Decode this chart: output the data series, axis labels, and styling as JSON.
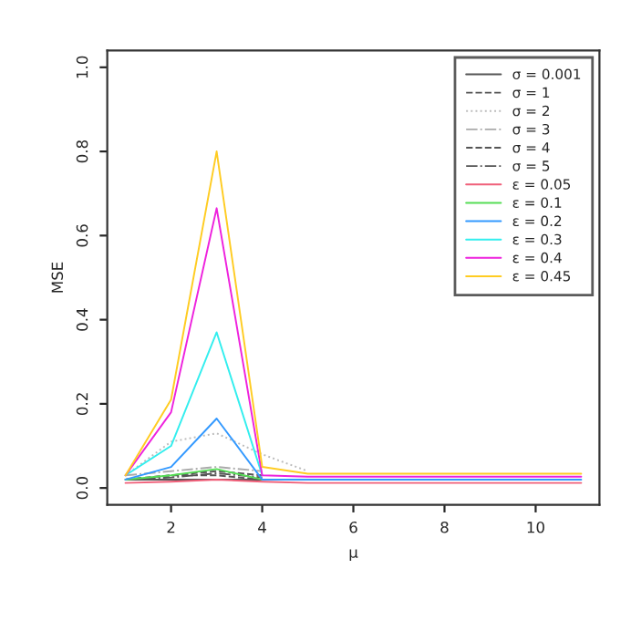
{
  "chart_data": {
    "type": "line",
    "xlabel": "μ",
    "ylabel": "MSE",
    "x": [
      1,
      2,
      3,
      4,
      5,
      6,
      7,
      8,
      9,
      10,
      11
    ],
    "xlim": [
      0.6,
      11.4
    ],
    "ylim": [
      -0.04,
      1.04
    ],
    "xticks": [
      2,
      4,
      6,
      8,
      10
    ],
    "yticks": [
      {
        "value": 0,
        "label": "0.0"
      },
      {
        "value": 0.2,
        "label": "0.2"
      },
      {
        "value": 0.4,
        "label": "0.4"
      },
      {
        "value": 0.6,
        "label": "0.6"
      },
      {
        "value": 0.8,
        "label": "0.8"
      },
      {
        "value": 1,
        "label": "1.0"
      }
    ],
    "grid": false,
    "legend": "top right",
    "marker": "none",
    "series": [
      {
        "name": "σ = 0.001",
        "color": "#555555",
        "line_style": "solid",
        "values": [
          0.02,
          0.02,
          0.02,
          0.02,
          null,
          null,
          null,
          null,
          null,
          null,
          null
        ]
      },
      {
        "name": "σ = 1",
        "color": "#555555",
        "line_style": "dashed",
        "values": [
          0.02,
          0.03,
          0.03,
          0.02,
          null,
          null,
          null,
          null,
          null,
          null,
          null
        ]
      },
      {
        "name": "σ = 2",
        "color": "#bbbbbb",
        "line_style": "dotted",
        "values": [
          0.03,
          0.11,
          0.13,
          0.08,
          0.04,
          null,
          null,
          null,
          null,
          null,
          null
        ]
      },
      {
        "name": "σ = 3",
        "color": "#aaaaaa",
        "line_style": "dashdot",
        "values": [
          0.03,
          0.04,
          0.05,
          0.04,
          null,
          null,
          null,
          null,
          null,
          null,
          null
        ]
      },
      {
        "name": "σ = 4",
        "color": "#555555",
        "line_style": "dashed",
        "values": [
          0.02,
          0.03,
          0.04,
          0.03,
          null,
          null,
          null,
          null,
          null,
          null,
          null
        ]
      },
      {
        "name": "σ = 5",
        "color": "#555555",
        "line_style": "dashdot",
        "values": [
          0.02,
          0.025,
          0.035,
          0.025,
          null,
          null,
          null,
          null,
          null,
          null,
          null
        ]
      },
      {
        "name": "ε = 0.05",
        "color": "#f0607a",
        "line_style": "solid",
        "values": [
          0.012,
          0.015,
          0.02,
          0.015,
          0.012,
          0.012,
          0.012,
          0.012,
          0.012,
          0.012,
          0.012
        ]
      },
      {
        "name": "ε = 0.1",
        "color": "#55dd55",
        "line_style": "solid",
        "values": [
          0.02,
          0.03,
          0.045,
          0.02,
          null,
          null,
          null,
          null,
          null,
          null,
          null
        ]
      },
      {
        "name": "ε = 0.2",
        "color": "#3399ff",
        "line_style": "solid",
        "values": [
          0.02,
          0.05,
          0.165,
          0.02,
          0.02,
          0.02,
          0.02,
          0.02,
          0.02,
          0.02,
          0.02
        ]
      },
      {
        "name": "ε = 0.3",
        "color": "#33eeee",
        "line_style": "solid",
        "values": [
          0.03,
          0.1,
          0.37,
          0.03,
          null,
          null,
          null,
          null,
          null,
          null,
          null
        ]
      },
      {
        "name": "ε = 0.4",
        "color": "#ee22dd",
        "line_style": "solid",
        "values": [
          0.03,
          0.18,
          0.665,
          0.03,
          0.027,
          0.027,
          0.027,
          0.027,
          0.027,
          0.027,
          0.027
        ]
      },
      {
        "name": "ε = 0.45",
        "color": "#ffcc22",
        "line_style": "solid",
        "values": [
          0.03,
          0.21,
          0.8,
          0.05,
          0.034,
          0.034,
          0.034,
          0.034,
          0.034,
          0.034,
          0.034
        ]
      }
    ]
  }
}
